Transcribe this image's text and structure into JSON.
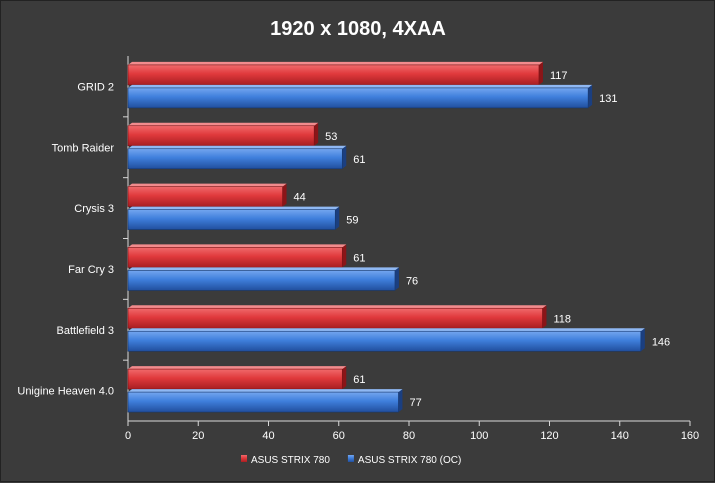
{
  "chart_data": {
    "type": "bar",
    "orientation": "horizontal",
    "title": "1920 x 1080, 4XAA",
    "categories": [
      "GRID 2",
      "Tomb Raider",
      "Crysis 3",
      "Far Cry 3",
      "Battlefield 3",
      "Unigine Heaven 4.0"
    ],
    "series": [
      {
        "name": "ASUS STRIX 780",
        "color": "#e0393c",
        "values": [
          117,
          53,
          44,
          61,
          118,
          61
        ]
      },
      {
        "name": "ASUS STRIX 780 (OC)",
        "color": "#3f7fdc",
        "values": [
          131,
          61,
          59,
          76,
          146,
          77
        ]
      }
    ],
    "xlim": [
      0,
      160
    ],
    "xticks": [
      0,
      20,
      40,
      60,
      80,
      100,
      120,
      140,
      160
    ],
    "grid": false,
    "legend_position": "bottom"
  }
}
